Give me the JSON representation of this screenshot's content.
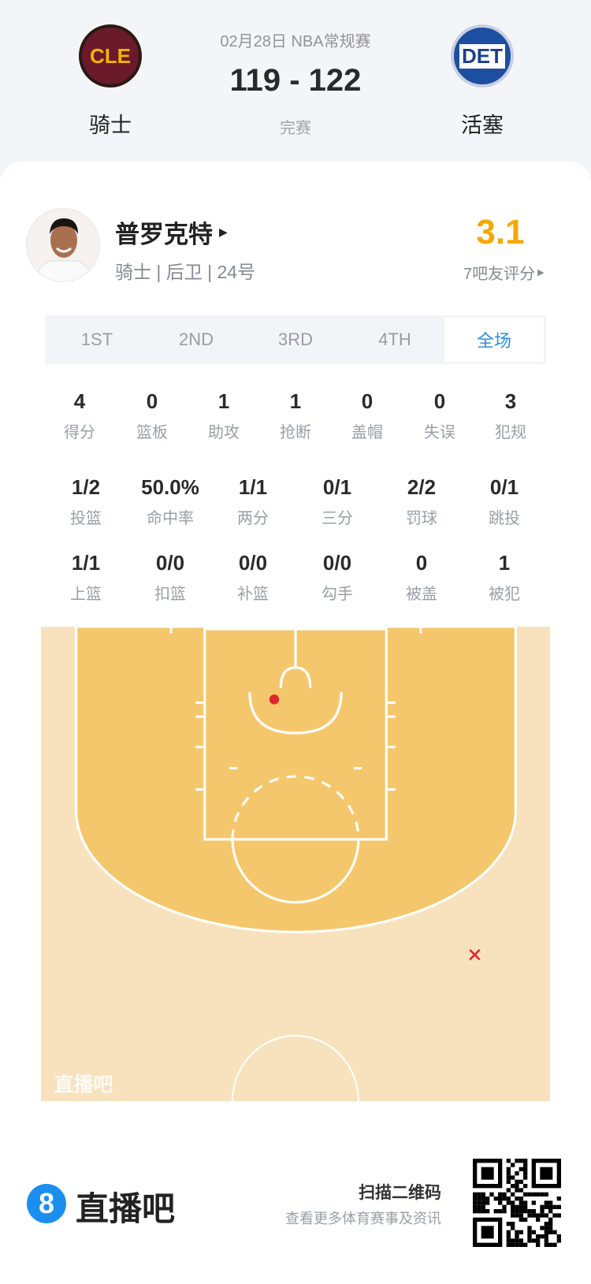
{
  "header": {
    "date_league": "02月28日 NBA常规赛",
    "score": "119 - 122",
    "status": "完赛",
    "home": {
      "abbr": "CLE",
      "name": "骑士"
    },
    "away": {
      "abbr": "DET",
      "name": "活塞"
    }
  },
  "player": {
    "name": "普罗克特",
    "info": "骑士 | 后卫 | 24号",
    "rating": "3.1",
    "rating_label": "7吧友评分"
  },
  "tabs": [
    {
      "label": "1ST"
    },
    {
      "label": "2ND"
    },
    {
      "label": "3RD"
    },
    {
      "label": "4TH"
    },
    {
      "label": "全场",
      "active": true
    }
  ],
  "stats_row1": [
    {
      "v": "4",
      "l": "得分"
    },
    {
      "v": "0",
      "l": "篮板"
    },
    {
      "v": "1",
      "l": "助攻"
    },
    {
      "v": "1",
      "l": "抢断"
    },
    {
      "v": "0",
      "l": "盖帽"
    },
    {
      "v": "0",
      "l": "失误"
    },
    {
      "v": "3",
      "l": "犯规"
    }
  ],
  "stats_row2": [
    {
      "v": "1/2",
      "l": "投篮"
    },
    {
      "v": "50.0%",
      "l": "命中率"
    },
    {
      "v": "1/1",
      "l": "两分"
    },
    {
      "v": "0/1",
      "l": "三分"
    },
    {
      "v": "2/2",
      "l": "罚球"
    },
    {
      "v": "0/1",
      "l": "跳投"
    }
  ],
  "stats_row3": [
    {
      "v": "1/1",
      "l": "上篮"
    },
    {
      "v": "0/0",
      "l": "扣篮"
    },
    {
      "v": "0/0",
      "l": "补篮"
    },
    {
      "v": "0/0",
      "l": "勾手"
    },
    {
      "v": "0",
      "l": "被盖"
    },
    {
      "v": "1",
      "l": "被犯"
    }
  ],
  "court": {
    "watermark": "直播吧",
    "shots": [
      {
        "result": "made"
      },
      {
        "result": "missed"
      }
    ],
    "colors": {
      "paint": "#f5c76c",
      "floor": "#f8e2bd",
      "made": "#e0262e",
      "missed": "#e0262e"
    }
  },
  "footer": {
    "brand": "直播吧",
    "brand_icon": "8",
    "qr_title": "扫描二维码",
    "qr_sub": "查看更多体育赛事及资讯"
  },
  "colors": {
    "accent": "#2b8fe6",
    "rating": "#f5a800"
  }
}
